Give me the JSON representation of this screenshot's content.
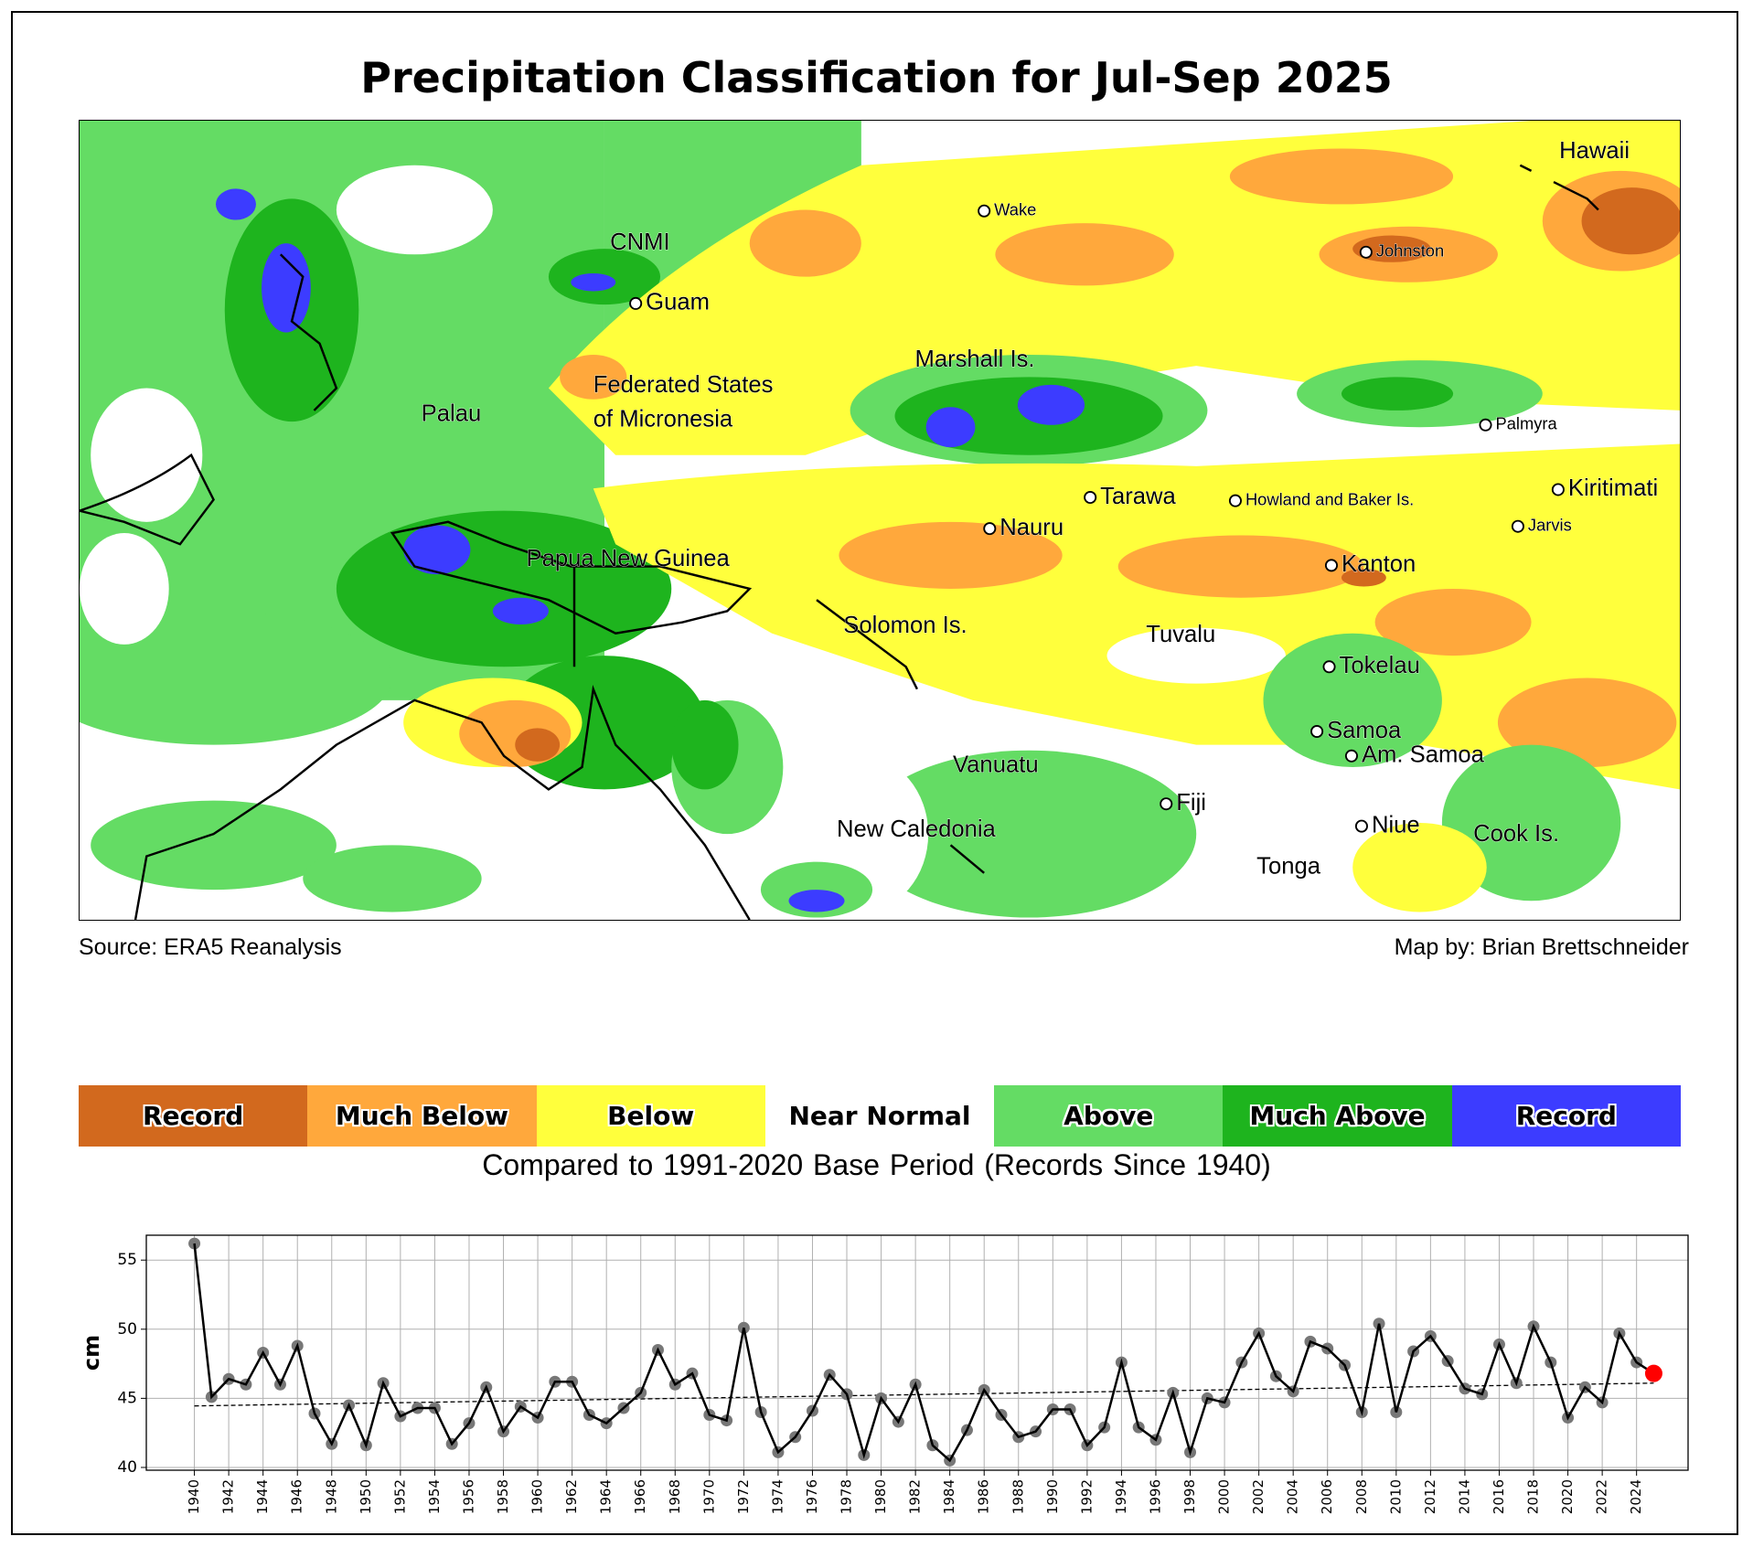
{
  "title": "Precipitation Classification for Jul-Sep 2025",
  "map": {
    "labels": [
      {
        "text": "Hawaii",
        "dot": false,
        "size": "large"
      },
      {
        "text": "Wake",
        "dot": true,
        "size": "small"
      },
      {
        "text": "CNMI",
        "dot": false,
        "size": "large"
      },
      {
        "text": "Guam",
        "dot": true,
        "size": "large"
      },
      {
        "text": "Johnston",
        "dot": true,
        "size": "small"
      },
      {
        "text": "Marshall Is.",
        "dot": false,
        "size": "large"
      },
      {
        "text": "Federated States",
        "dot": false,
        "size": "large"
      },
      {
        "text": "of Micronesia",
        "dot": false,
        "size": "large"
      },
      {
        "text": "Palau",
        "dot": false,
        "size": "large"
      },
      {
        "text": "Palmyra",
        "dot": true,
        "size": "small"
      },
      {
        "text": "Kiritimati",
        "dot": true,
        "size": "large"
      },
      {
        "text": "Tarawa",
        "dot": true,
        "size": "large"
      },
      {
        "text": "Howland and Baker Is.",
        "dot": true,
        "size": "small"
      },
      {
        "text": "Jarvis",
        "dot": true,
        "size": "small"
      },
      {
        "text": "Nauru",
        "dot": true,
        "size": "large"
      },
      {
        "text": "Kanton",
        "dot": true,
        "size": "large"
      },
      {
        "text": "Papua New Guinea",
        "dot": false,
        "size": "large"
      },
      {
        "text": "Solomon Is.",
        "dot": false,
        "size": "large"
      },
      {
        "text": "Tuvalu",
        "dot": false,
        "size": "large"
      },
      {
        "text": "Tokelau",
        "dot": true,
        "size": "large"
      },
      {
        "text": "Samoa",
        "dot": true,
        "size": "large"
      },
      {
        "text": "Am. Samoa",
        "dot": true,
        "size": "large"
      },
      {
        "text": "Vanuatu",
        "dot": false,
        "size": "large"
      },
      {
        "text": "Fiji",
        "dot": true,
        "size": "large"
      },
      {
        "text": "Niue",
        "dot": true,
        "size": "large"
      },
      {
        "text": "New Caledonia",
        "dot": false,
        "size": "large"
      },
      {
        "text": "Cook Is.",
        "dot": false,
        "size": "large"
      },
      {
        "text": "Tonga",
        "dot": false,
        "size": "large"
      }
    ]
  },
  "source": "Source: ERA5 Reanalysis",
  "credit": "Map by: Brian Brettschneider",
  "legend": {
    "items": [
      {
        "label": "Record",
        "color": "#D2691E"
      },
      {
        "label": "Much Below",
        "color": "#FFA83C"
      },
      {
        "label": "Below",
        "color": "#FFFF3C"
      },
      {
        "label": "Near Normal",
        "color": "#FFFFFF"
      },
      {
        "label": "Above",
        "color": "#64DC64"
      },
      {
        "label": "Much Above",
        "color": "#1EB41E"
      },
      {
        "label": "Record",
        "color": "#3C3CFF"
      }
    ],
    "subtitle": "Compared to 1991-2020 Base Period   (Records Since 1940)"
  },
  "chart_data": {
    "type": "line",
    "title": "",
    "xlabel": "",
    "ylabel": "cm",
    "ylim": [
      39.8,
      56.8
    ],
    "xlim": [
      1937.2,
      2027
    ],
    "yticks": [
      40,
      45,
      50,
      55
    ],
    "xticks_step": 2,
    "grid": true,
    "x": [
      1940,
      1941,
      1942,
      1943,
      1944,
      1945,
      1946,
      1947,
      1948,
      1949,
      1950,
      1951,
      1952,
      1953,
      1954,
      1955,
      1956,
      1957,
      1958,
      1959,
      1960,
      1961,
      1962,
      1963,
      1964,
      1965,
      1966,
      1967,
      1968,
      1969,
      1970,
      1971,
      1972,
      1973,
      1974,
      1975,
      1976,
      1977,
      1978,
      1979,
      1980,
      1981,
      1982,
      1983,
      1984,
      1985,
      1986,
      1987,
      1988,
      1989,
      1990,
      1991,
      1992,
      1993,
      1994,
      1995,
      1996,
      1997,
      1998,
      1999,
      2000,
      2001,
      2002,
      2003,
      2004,
      2005,
      2006,
      2007,
      2008,
      2009,
      2010,
      2011,
      2012,
      2013,
      2014,
      2015,
      2016,
      2017,
      2018,
      2019,
      2020,
      2021,
      2022,
      2023,
      2024,
      2025
    ],
    "series": [
      {
        "name": "Jul-Sep precipitation",
        "color": "#000000",
        "marker_color": "#777777",
        "values": [
          56.2,
          45.1,
          46.4,
          46.0,
          48.3,
          46.0,
          48.8,
          43.9,
          41.7,
          44.5,
          41.6,
          46.1,
          43.7,
          44.3,
          44.3,
          41.7,
          43.2,
          45.8,
          42.6,
          44.4,
          43.6,
          46.2,
          46.2,
          43.8,
          43.2,
          44.3,
          45.4,
          48.5,
          46.0,
          46.8,
          43.8,
          43.4,
          50.1,
          44.0,
          41.1,
          42.2,
          44.1,
          46.7,
          45.3,
          40.9,
          45.0,
          43.3,
          46.0,
          41.6,
          40.5,
          42.7,
          45.6,
          43.8,
          42.2,
          42.6,
          44.2,
          44.2,
          41.6,
          42.9,
          47.6,
          42.9,
          42.0,
          45.4,
          41.1,
          45.0,
          44.7,
          47.6,
          49.7,
          46.6,
          45.5,
          49.1,
          48.6,
          47.4,
          44.0,
          50.4,
          44.0,
          48.4,
          49.5,
          47.7,
          45.7,
          45.3,
          48.9,
          46.1,
          50.2,
          47.6,
          43.6,
          45.8,
          44.7,
          49.7,
          47.6,
          46.8
        ]
      },
      {
        "name": "Trend",
        "style": "dashed",
        "color": "#000000",
        "x": [
          1940,
          2025
        ],
        "values": [
          44.45,
          46.1
        ]
      }
    ],
    "highlight": {
      "x": 2025,
      "value": 46.8,
      "color": "#FF0000"
    }
  }
}
